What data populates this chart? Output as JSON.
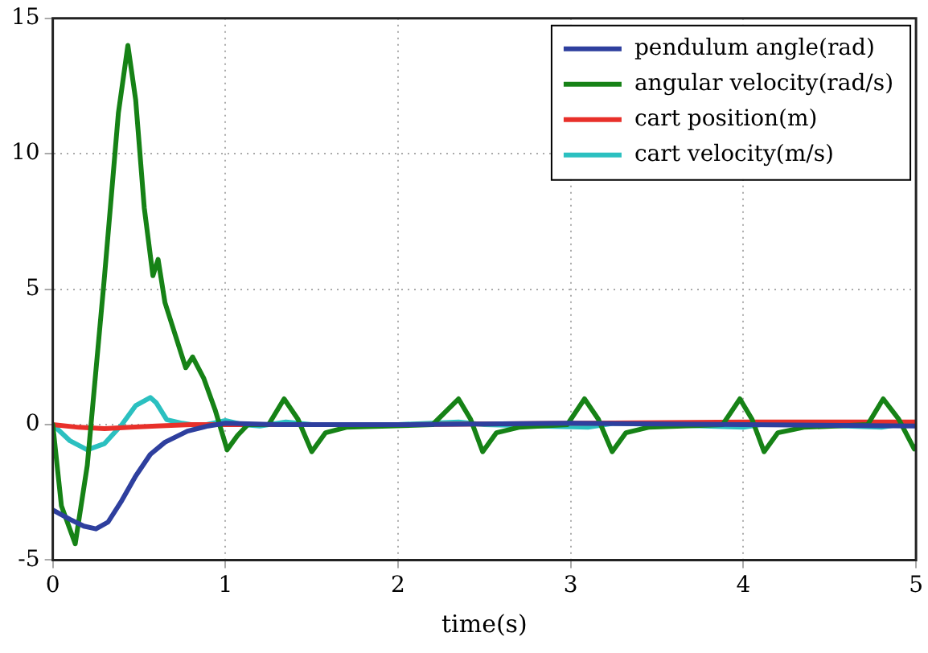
{
  "chart_data": {
    "type": "line",
    "xlabel": "time(s)",
    "xlim": [
      0,
      5
    ],
    "xticks": [
      0,
      1,
      2,
      3,
      4,
      5
    ],
    "ylim": [
      -5,
      15
    ],
    "yticks": [
      -5,
      0,
      5,
      10,
      15
    ],
    "grid": true,
    "legend": "top right",
    "marker": "none",
    "line_style": "solid",
    "series": [
      {
        "name": "pendulum angle(rad)",
        "color": "#2e3f9e",
        "x": [
          0,
          0.1,
          0.18,
          0.25,
          0.32,
          0.4,
          0.48,
          0.565,
          0.65,
          0.78,
          0.9,
          1.0,
          1.3,
          2,
          3,
          4,
          5
        ],
        "values": [
          -3.15,
          -3.5,
          -3.75,
          -3.85,
          -3.6,
          -2.8,
          -1.9,
          -1.1,
          -0.65,
          -0.24,
          -0.05,
          0.05,
          0,
          0,
          0.05,
          0,
          -0.05
        ]
      },
      {
        "name": "angular velocity(rad/s)",
        "color": "#168216",
        "x": [
          0,
          0.05,
          0.13,
          0.2,
          0.3,
          0.38,
          0.435,
          0.48,
          0.53,
          0.58,
          0.61,
          0.65,
          0.7,
          0.77,
          0.81,
          0.875,
          0.94,
          1.01,
          1.07,
          1.13,
          1.25,
          1.34,
          1.42,
          1.5,
          1.58,
          1.7,
          2.2,
          2.35,
          2.42,
          2.49,
          2.57,
          2.7,
          2.98,
          3.08,
          3.16,
          3.24,
          3.32,
          3.45,
          3.88,
          3.98,
          4.05,
          4.12,
          4.2,
          4.35,
          4.72,
          4.81,
          4.9,
          4.99,
          5
        ],
        "values": [
          0,
          -3,
          -4.4,
          -1.5,
          5.5,
          11.5,
          14,
          12,
          8,
          5.5,
          6.1,
          4.5,
          3.5,
          2.1,
          2.5,
          1.7,
          0.55,
          -0.93,
          -0.4,
          0,
          0,
          0.95,
          0.2,
          -1,
          -0.3,
          -0.1,
          0,
          0.95,
          0.2,
          -1,
          -0.3,
          -0.1,
          0,
          0.95,
          0.2,
          -1,
          -0.3,
          -0.1,
          0,
          0.95,
          0.2,
          -1,
          -0.3,
          -0.1,
          0,
          0.95,
          0.2,
          -0.9,
          -0.8
        ]
      },
      {
        "name": "cart position(m)",
        "color": "#e8302a",
        "x": [
          0,
          0.15,
          0.3,
          0.45,
          0.6,
          0.8,
          1,
          2,
          3,
          4,
          5
        ],
        "values": [
          0,
          -0.1,
          -0.15,
          -0.1,
          -0.05,
          0,
          0,
          0,
          0.05,
          0.1,
          0.1
        ]
      },
      {
        "name": "cart velocity(m/s)",
        "color": "#2bc0c0",
        "x": [
          0,
          0.1,
          0.2,
          0.3,
          0.4,
          0.48,
          0.565,
          0.6,
          0.66,
          0.75,
          0.85,
          1.0,
          1.1,
          1.2,
          1.35,
          1.5,
          2,
          2.35,
          2.5,
          3.1,
          3.25,
          4.0,
          4.15,
          4.8,
          5
        ],
        "values": [
          0,
          -0.6,
          -0.93,
          -0.7,
          0,
          0.7,
          1.0,
          0.8,
          0.18,
          0.05,
          -0.05,
          0.15,
          0,
          -0.05,
          0.1,
          0,
          0,
          0.1,
          0,
          -0.1,
          0.05,
          -0.1,
          0.05,
          -0.1,
          0.1
        ]
      }
    ]
  }
}
